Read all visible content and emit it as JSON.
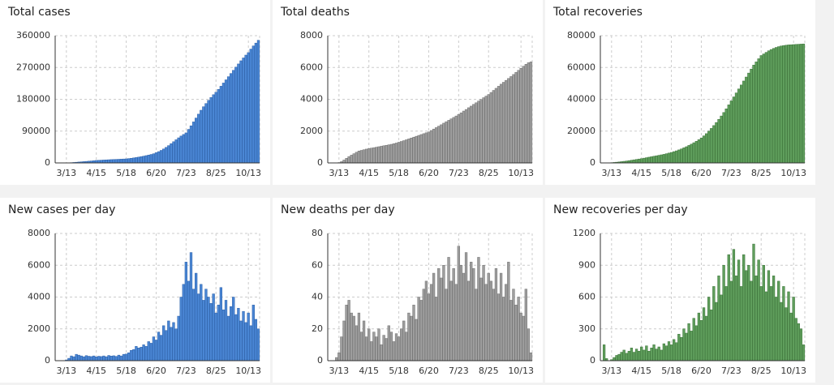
{
  "chart_data": [
    {
      "type": "bar",
      "title": "Total cases",
      "color": "#4a86d4",
      "edge": "#2a5fa8",
      "grid": true,
      "categories": [
        null,
        null,
        null,
        null,
        "3/13",
        null,
        null,
        null,
        null,
        null,
        null,
        null,
        null,
        null,
        null,
        null,
        "4/15",
        null,
        null,
        null,
        null,
        null,
        null,
        null,
        null,
        null,
        null,
        null,
        "5/18",
        null,
        null,
        null,
        null,
        null,
        null,
        null,
        null,
        null,
        null,
        null,
        "6/20",
        null,
        null,
        null,
        null,
        null,
        null,
        null,
        null,
        null,
        null,
        null,
        "7/23",
        null,
        null,
        null,
        null,
        null,
        null,
        null,
        null,
        null,
        null,
        null,
        "8/25",
        null,
        null,
        null,
        null,
        null,
        null,
        null,
        null,
        null,
        null,
        null,
        null,
        "10/13",
        null,
        null,
        null,
        null
      ],
      "values": [
        0,
        0,
        0,
        20,
        100,
        400,
        800,
        1300,
        1900,
        2500,
        3100,
        3700,
        4300,
        4900,
        5500,
        6200,
        7000,
        7400,
        7800,
        8200,
        8600,
        9000,
        9400,
        9700,
        10000,
        10300,
        10700,
        11100,
        11500,
        12300,
        13200,
        14200,
        15300,
        16500,
        17800,
        19200,
        20700,
        22300,
        24000,
        26000,
        29000,
        32000,
        35500,
        39500,
        44000,
        49000,
        54500,
        60000,
        65500,
        71000,
        76000,
        80500,
        85000,
        95000,
        105000,
        116000,
        127000,
        138000,
        149000,
        159000,
        168000,
        177000,
        185000,
        193000,
        200000,
        208000,
        217000,
        226000,
        235000,
        244000,
        253000,
        262000,
        271000,
        280000,
        289000,
        297000,
        305000,
        312000,
        322000,
        331000,
        339000,
        347000
      ],
      "ylim": [
        0,
        360000
      ],
      "yticks": [
        0,
        90000,
        180000,
        270000,
        360000
      ]
    },
    {
      "type": "bar",
      "title": "Total deaths",
      "color": "#9e9e9e",
      "edge": "#6e6e6e",
      "grid": true,
      "categories": [
        null,
        null,
        null,
        null,
        "3/13",
        null,
        null,
        null,
        null,
        null,
        null,
        null,
        null,
        null,
        null,
        null,
        "4/15",
        null,
        null,
        null,
        null,
        null,
        null,
        null,
        null,
        null,
        null,
        null,
        "5/18",
        null,
        null,
        null,
        null,
        null,
        null,
        null,
        null,
        null,
        null,
        null,
        "6/20",
        null,
        null,
        null,
        null,
        null,
        null,
        null,
        null,
        null,
        null,
        null,
        "7/23",
        null,
        null,
        null,
        null,
        null,
        null,
        null,
        null,
        null,
        null,
        null,
        "8/25",
        null,
        null,
        null,
        null,
        null,
        null,
        null,
        null,
        null,
        null,
        null,
        null,
        "10/13",
        null,
        null,
        null,
        null
      ],
      "values": [
        0,
        0,
        0,
        5,
        20,
        80,
        180,
        290,
        400,
        490,
        580,
        670,
        750,
        790,
        830,
        870,
        900,
        930,
        960,
        990,
        1020,
        1050,
        1080,
        1110,
        1140,
        1170,
        1210,
        1250,
        1300,
        1350,
        1400,
        1455,
        1510,
        1565,
        1620,
        1675,
        1730,
        1785,
        1840,
        1895,
        1950,
        2040,
        2130,
        2220,
        2310,
        2400,
        2500,
        2590,
        2680,
        2770,
        2860,
        2950,
        3050,
        3150,
        3260,
        3360,
        3470,
        3570,
        3680,
        3780,
        3890,
        3990,
        4100,
        4200,
        4300,
        4430,
        4560,
        4690,
        4820,
        4950,
        5070,
        5190,
        5310,
        5430,
        5560,
        5690,
        5820,
        5950,
        6080,
        6200,
        6300,
        6350
      ],
      "ylim": [
        0,
        8000
      ],
      "yticks": [
        0,
        2000,
        4000,
        6000,
        8000
      ]
    },
    {
      "type": "bar",
      "title": "Total recoveries",
      "color": "#5f9e5c",
      "edge": "#3a7237",
      "grid": true,
      "categories": [
        null,
        null,
        null,
        null,
        "3/13",
        null,
        null,
        null,
        null,
        null,
        null,
        null,
        null,
        null,
        null,
        null,
        "4/15",
        null,
        null,
        null,
        null,
        null,
        null,
        null,
        null,
        null,
        null,
        null,
        "5/18",
        null,
        null,
        null,
        null,
        null,
        null,
        null,
        null,
        null,
        null,
        null,
        "6/20",
        null,
        null,
        null,
        null,
        null,
        null,
        null,
        null,
        null,
        null,
        null,
        "7/23",
        null,
        null,
        null,
        null,
        null,
        null,
        null,
        null,
        null,
        null,
        null,
        "8/25",
        null,
        null,
        null,
        null,
        null,
        null,
        null,
        null,
        null,
        null,
        null,
        null,
        "10/13",
        null,
        null,
        null,
        null
      ],
      "values": [
        0,
        0,
        0,
        50,
        150,
        300,
        450,
        600,
        800,
        1000,
        1200,
        1450,
        1700,
        1950,
        2200,
        2450,
        2700,
        3000,
        3300,
        3600,
        3900,
        4200,
        4500,
        4800,
        5100,
        5400,
        5800,
        6200,
        6600,
        7100,
        7600,
        8200,
        8800,
        9500,
        10200,
        11000,
        11800,
        12700,
        13600,
        14600,
        15700,
        17000,
        18400,
        20000,
        21700,
        23500,
        25400,
        27400,
        29500,
        31700,
        34000,
        36500,
        39000,
        41500,
        44000,
        46500,
        49000,
        51500,
        54000,
        56500,
        59000,
        61500,
        63500,
        65500,
        67500,
        68500,
        69500,
        70500,
        71300,
        72000,
        72600,
        73100,
        73500,
        73800,
        74000,
        74200,
        74300,
        74400,
        74500,
        74600,
        74700,
        74800
      ],
      "ylim": [
        0,
        80000
      ],
      "yticks": [
        0,
        20000,
        40000,
        60000,
        80000
      ]
    },
    {
      "type": "bar",
      "title": "New cases per day",
      "color": "#4a86d4",
      "edge": "#2a5fa8",
      "grid": true,
      "categories": [
        null,
        null,
        null,
        null,
        "3/13",
        null,
        null,
        null,
        null,
        null,
        null,
        null,
        null,
        null,
        null,
        null,
        "4/15",
        null,
        null,
        null,
        null,
        null,
        null,
        null,
        null,
        null,
        null,
        null,
        "5/18",
        null,
        null,
        null,
        null,
        null,
        null,
        null,
        null,
        null,
        null,
        null,
        "6/20",
        null,
        null,
        null,
        null,
        null,
        null,
        null,
        null,
        null,
        null,
        null,
        "7/23",
        null,
        null,
        null,
        null,
        null,
        null,
        null,
        null,
        null,
        null,
        null,
        "8/25",
        null,
        null,
        null,
        null,
        null,
        null,
        null,
        null,
        null,
        null,
        null,
        null,
        "10/13",
        null,
        null,
        null,
        null
      ],
      "values": [
        0,
        0,
        0,
        10,
        50,
        150,
        300,
        250,
        400,
        350,
        300,
        250,
        320,
        280,
        260,
        300,
        240,
        280,
        260,
        300,
        250,
        330,
        290,
        310,
        270,
        350,
        300,
        400,
        420,
        500,
        650,
        700,
        900,
        800,
        850,
        1000,
        900,
        1200,
        1100,
        1500,
        1300,
        1800,
        1600,
        2200,
        1900,
        2500,
        2100,
        2400,
        2000,
        2800,
        4000,
        4800,
        6200,
        5000,
        6800,
        4500,
        5500,
        4200,
        4800,
        3800,
        4500,
        4000,
        3600,
        4200,
        3000,
        3500,
        4600,
        3200,
        3800,
        2800,
        3400,
        4000,
        2900,
        3300,
        2500,
        3100,
        2400,
        3000,
        2200,
        3500,
        2600,
        2000
      ],
      "ylim": [
        0,
        8000
      ],
      "yticks": [
        0,
        2000,
        4000,
        6000,
        8000
      ]
    },
    {
      "type": "bar",
      "title": "New deaths per day",
      "color": "#9e9e9e",
      "edge": "#6e6e6e",
      "grid": true,
      "categories": [
        null,
        null,
        null,
        null,
        "3/13",
        null,
        null,
        null,
        null,
        null,
        null,
        null,
        null,
        null,
        null,
        null,
        "4/15",
        null,
        null,
        null,
        null,
        null,
        null,
        null,
        null,
        null,
        null,
        null,
        "5/18",
        null,
        null,
        null,
        null,
        null,
        null,
        null,
        null,
        null,
        null,
        null,
        "6/20",
        null,
        null,
        null,
        null,
        null,
        null,
        null,
        null,
        null,
        null,
        null,
        "7/23",
        null,
        null,
        null,
        null,
        null,
        null,
        null,
        null,
        null,
        null,
        null,
        "8/25",
        null,
        null,
        null,
        null,
        null,
        null,
        null,
        null,
        null,
        null,
        null,
        null,
        "10/13",
        null,
        null,
        null,
        null
      ],
      "values": [
        0,
        0,
        0,
        2,
        5,
        15,
        25,
        35,
        38,
        30,
        28,
        22,
        30,
        18,
        25,
        15,
        20,
        12,
        18,
        15,
        20,
        10,
        16,
        14,
        22,
        18,
        12,
        17,
        15,
        20,
        25,
        18,
        30,
        28,
        35,
        26,
        40,
        38,
        45,
        50,
        42,
        48,
        55,
        40,
        58,
        52,
        60,
        45,
        65,
        50,
        58,
        48,
        72,
        60,
        55,
        68,
        50,
        62,
        58,
        45,
        65,
        52,
        60,
        48,
        55,
        50,
        45,
        58,
        42,
        55,
        40,
        48,
        62,
        38,
        45,
        35,
        40,
        30,
        28,
        45,
        20,
        5
      ],
      "ylim": [
        0,
        80
      ],
      "yticks": [
        0,
        20,
        40,
        60,
        80
      ]
    },
    {
      "type": "bar",
      "title": "New recoveries per day",
      "color": "#5f9e5c",
      "edge": "#3a7237",
      "grid": true,
      "categories": [
        null,
        null,
        null,
        null,
        "3/13",
        null,
        null,
        null,
        null,
        null,
        null,
        null,
        null,
        null,
        null,
        null,
        "4/15",
        null,
        null,
        null,
        null,
        null,
        null,
        null,
        null,
        null,
        null,
        null,
        "5/18",
        null,
        null,
        null,
        null,
        null,
        null,
        null,
        null,
        null,
        null,
        null,
        "6/20",
        null,
        null,
        null,
        null,
        null,
        null,
        null,
        null,
        null,
        null,
        null,
        "7/23",
        null,
        null,
        null,
        null,
        null,
        null,
        null,
        null,
        null,
        null,
        null,
        "8/25",
        null,
        null,
        null,
        null,
        null,
        null,
        null,
        null,
        null,
        null,
        null,
        null,
        "10/13",
        null,
        null,
        null,
        null
      ],
      "values": [
        0,
        150,
        20,
        0,
        10,
        30,
        50,
        60,
        80,
        100,
        70,
        90,
        120,
        80,
        110,
        90,
        130,
        100,
        140,
        90,
        120,
        150,
        110,
        130,
        100,
        160,
        140,
        180,
        150,
        200,
        170,
        250,
        220,
        300,
        260,
        350,
        280,
        400,
        330,
        450,
        380,
        500,
        420,
        600,
        480,
        700,
        550,
        800,
        620,
        900,
        700,
        1000,
        750,
        1050,
        800,
        950,
        700,
        1000,
        850,
        900,
        750,
        1100,
        800,
        950,
        700,
        900,
        650,
        850,
        700,
        800,
        600,
        750,
        550,
        700,
        500,
        650,
        450,
        600,
        400,
        350,
        300,
        150
      ],
      "ylim": [
        0,
        1200
      ],
      "yticks": [
        0,
        300,
        600,
        900,
        1200
      ]
    }
  ]
}
